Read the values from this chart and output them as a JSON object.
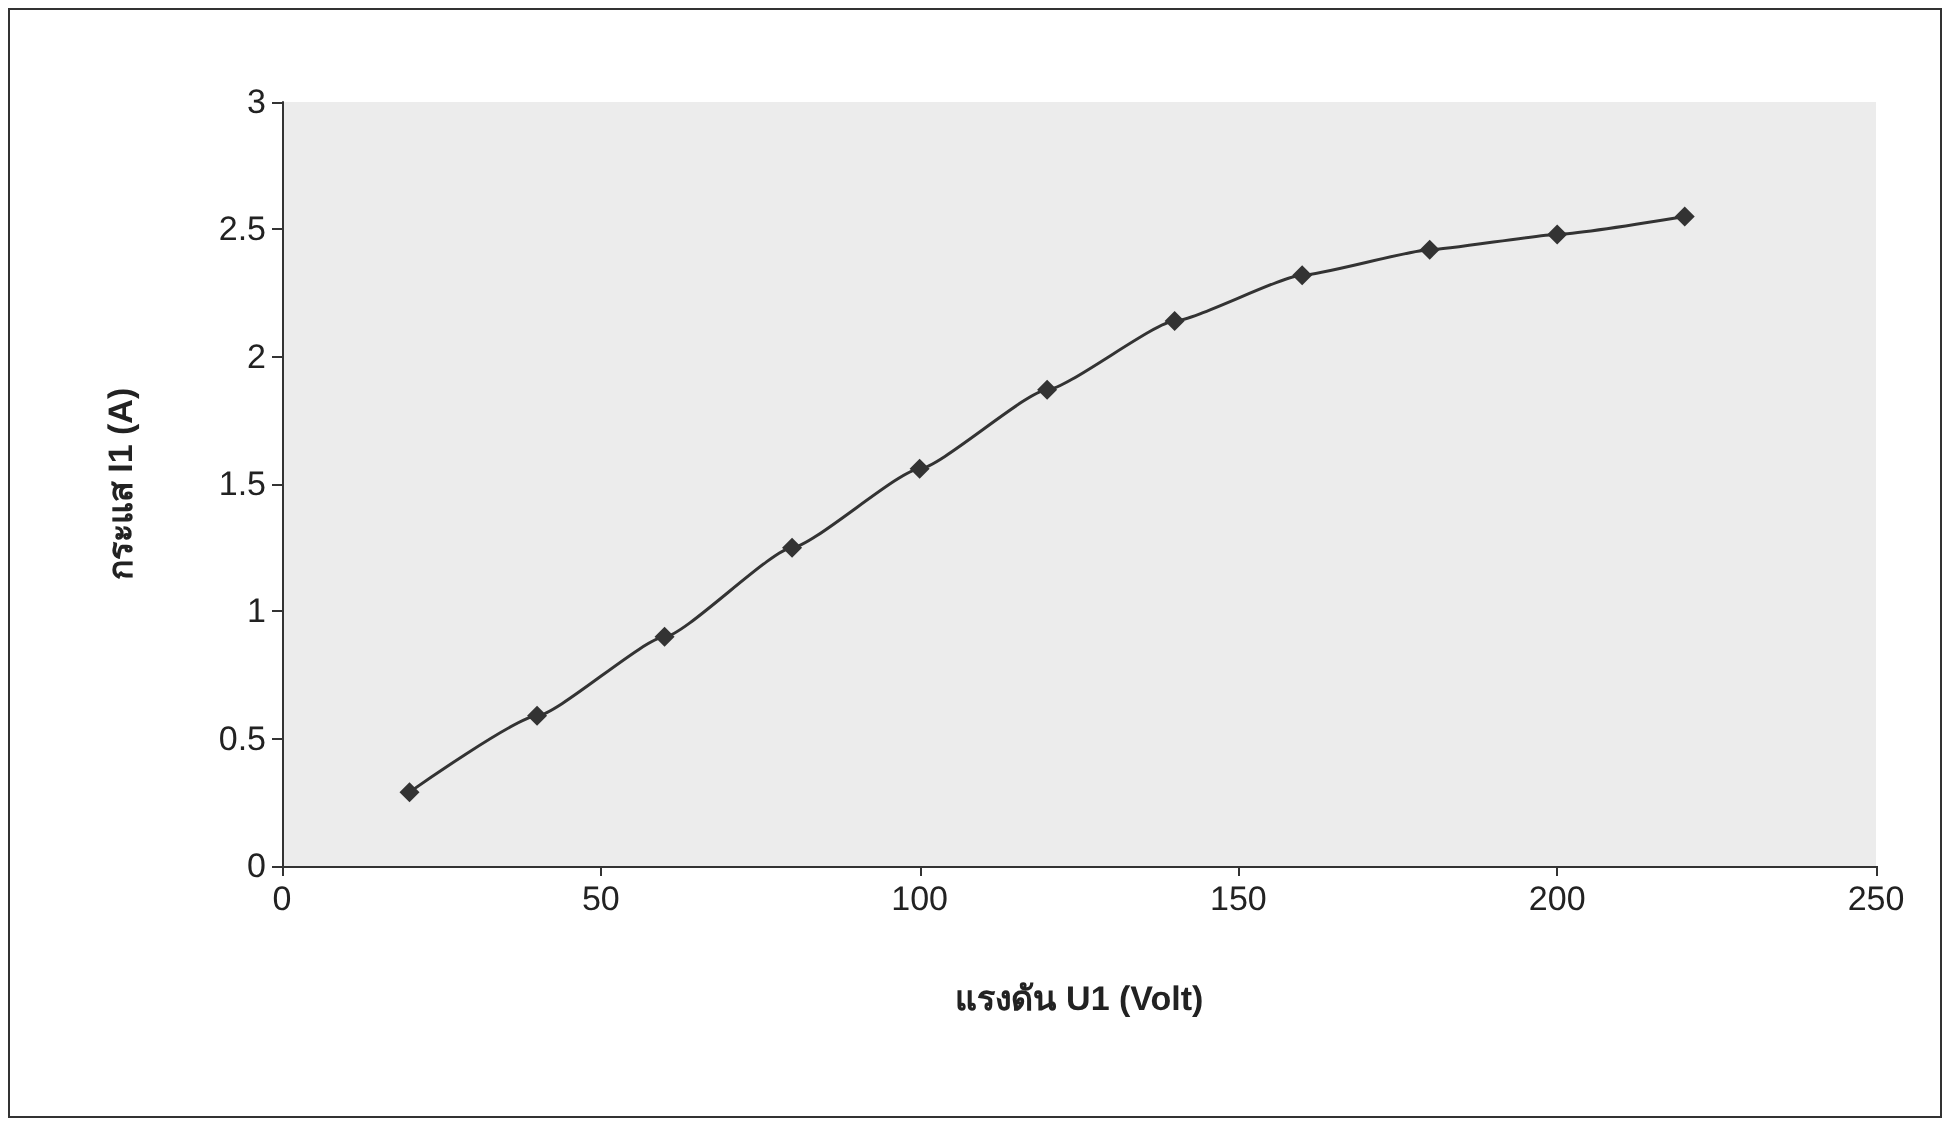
{
  "chart_data": {
    "type": "line",
    "xlabel": "แรงดัน U1 (Volt)",
    "ylabel": "กระแส I1 (A)",
    "x": [
      20,
      40,
      60,
      80,
      100,
      120,
      140,
      160,
      180,
      200,
      220
    ],
    "series": [
      {
        "color": "#333333",
        "values": [
          0.29,
          0.59,
          0.9,
          1.25,
          1.56,
          1.87,
          2.14,
          2.32,
          2.42,
          2.48,
          2.55
        ]
      }
    ],
    "xlim": [
      0,
      250
    ],
    "xticks": [
      0,
      50,
      100,
      150,
      200,
      250
    ],
    "ylim": [
      0,
      3
    ],
    "yticks": [
      0,
      0.5,
      1,
      1.5,
      2,
      2.5,
      3
    ],
    "grid": false,
    "marker": "diamond",
    "line_style": "solid"
  }
}
